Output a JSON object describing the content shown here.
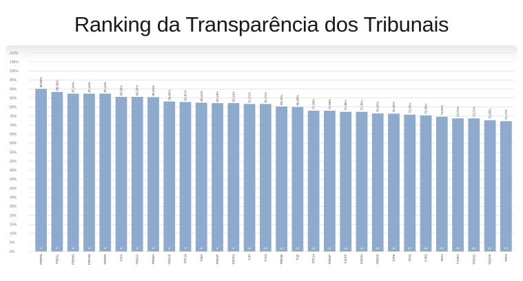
{
  "title": "Ranking da Transparência dos Tribunais",
  "colors": {
    "bar": "#8eaacc",
    "grid": "#d6d6d6",
    "axis_text": "#777777"
  },
  "chart_data": {
    "type": "bar",
    "title": "Ranking da Transparência dos Tribunais",
    "ylim": [
      0,
      110
    ],
    "y_ticks": [
      "0%",
      "5%",
      "10%",
      "15%",
      "20%",
      "25%",
      "30%",
      "35%",
      "40%",
      "45%",
      "50%",
      "55%",
      "60%",
      "65%",
      "70%",
      "75%",
      "80%",
      "85%",
      "90%",
      "95%",
      "100%",
      "105%",
      "110%"
    ],
    "grid": true,
    "categories": [
      "TRERN",
      "TREAL",
      "TREMS",
      "TREAM",
      "TRERS",
      "TJPA",
      "TREAC",
      "TREBA",
      "TRECE",
      "TRT18",
      "TJBA",
      "TRENT",
      "TRETO",
      "TJPI",
      "TJTO",
      "TRESE",
      "TSE",
      "TRT14",
      "TREDF",
      "TJDFT",
      "TREPA",
      "TREPE",
      "TJPE",
      "TRT6",
      "TJRS",
      "TRT4",
      "TJARU",
      "TRESC",
      "TREPR",
      "TRF3"
    ],
    "values": [
      90.09,
      88.39,
      87.44,
      87.44,
      87.44,
      85.65,
      85.65,
      85.52,
      83.09,
      82.81,
      82.44,
      82.19,
      82.19,
      81.71,
      81.71,
      80.34,
      80.08,
      77.98,
      77.98,
      77.35,
      77.35,
      76.45,
      76.35,
      75.79,
      75.36,
      74.62,
      73.72,
      73.72,
      72.68,
      72.17
    ],
    "data_labels": [
      "90,09%",
      "88,39%",
      "87,44%",
      "87,44%",
      "87,44%",
      "85,65%",
      "85,65%",
      "85,52%",
      "83,09%",
      "82,81%",
      "82,44%",
      "82,19%",
      "82,19%",
      "81,71%",
      "81,71%",
      "80,34%",
      "80,08%",
      "77,98%",
      "77,98%",
      "77,35%",
      "77,35%",
      "76,45%",
      "76,35%",
      "75,79%",
      "75,36%",
      "74,62%",
      "73,72%",
      "73,72%",
      "72,68%",
      "72,17%"
    ],
    "aux_labels": [
      "1º",
      "2º",
      "3º",
      "3º",
      "3º",
      "4º",
      "4º",
      "5º",
      "6º",
      "7º",
      "8º",
      "9º",
      "9º",
      "10º",
      "10º",
      "11º",
      "12º",
      "13º",
      "13º",
      "14º",
      "14º",
      "15º",
      "16º",
      "17º",
      "18º",
      "19º",
      "20º",
      "20º",
      "21º",
      "22º"
    ]
  }
}
